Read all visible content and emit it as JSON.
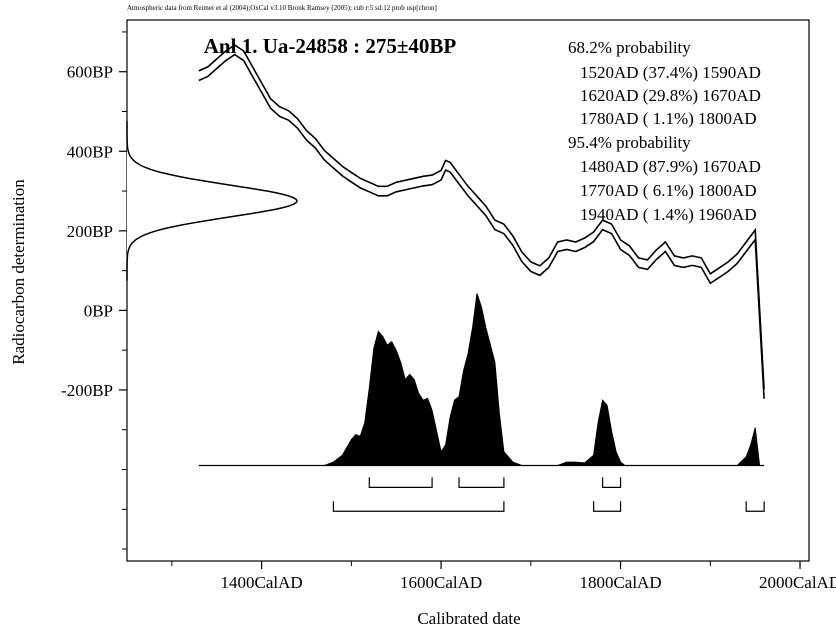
{
  "chart_data": {
    "type": "area",
    "header_note": "Atmospheric data from Reimer et al (2004);OxCal v3.10 Bronk Ramsey (2005); cub r:5 sd:12 prob usp[chron]",
    "title": "Anl 1. Ua-24858 : 275±40BP",
    "xlabel": "Calibrated date",
    "ylabel": "Radiocarbon determination",
    "xlim": [
      1250,
      2010
    ],
    "ylim": [
      -630,
      730
    ],
    "x_ticks": [
      {
        "value": 1400,
        "label": "1400CalAD"
      },
      {
        "value": 1600,
        "label": "1600CalAD"
      },
      {
        "value": 1800,
        "label": "1800CalAD"
      },
      {
        "value": 2000,
        "label": "2000CalAD"
      }
    ],
    "x_minor_ticks": [
      1300,
      1500,
      1700,
      1900
    ],
    "y_ticks": [
      {
        "value": 600,
        "label": "600BP"
      },
      {
        "value": 400,
        "label": "400BP"
      },
      {
        "value": 200,
        "label": "200BP"
      },
      {
        "value": 0,
        "label": "0BP"
      },
      {
        "value": -200,
        "label": "-200BP"
      }
    ],
    "y_minor_ticks": [
      700,
      500,
      300,
      100,
      -100,
      -300,
      -400,
      -500,
      -600
    ],
    "calibration_curve": {
      "x": [
        1330,
        1340,
        1350,
        1360,
        1370,
        1380,
        1390,
        1400,
        1410,
        1420,
        1430,
        1440,
        1450,
        1460,
        1470,
        1480,
        1490,
        1500,
        1510,
        1520,
        1530,
        1540,
        1550,
        1560,
        1570,
        1580,
        1590,
        1600,
        1605,
        1610,
        1620,
        1630,
        1640,
        1650,
        1660,
        1670,
        1680,
        1690,
        1700,
        1710,
        1720,
        1730,
        1740,
        1750,
        1760,
        1770,
        1780,
        1790,
        1800,
        1810,
        1820,
        1830,
        1840,
        1850,
        1860,
        1870,
        1880,
        1890,
        1900,
        1910,
        1920,
        1930,
        1940,
        1950,
        1960
      ],
      "y": [
        590,
        600,
        620,
        640,
        655,
        640,
        600,
        560,
        520,
        500,
        490,
        470,
        440,
        420,
        390,
        370,
        350,
        335,
        320,
        310,
        300,
        300,
        310,
        315,
        320,
        325,
        328,
        340,
        365,
        360,
        330,
        300,
        275,
        250,
        215,
        205,
        175,
        135,
        110,
        100,
        120,
        160,
        165,
        160,
        170,
        185,
        215,
        205,
        165,
        150,
        120,
        115,
        140,
        160,
        125,
        120,
        125,
        120,
        80,
        95,
        110,
        130,
        160,
        190,
        -210
      ]
    },
    "curve_band_width_bp": 24,
    "measured_date": {
      "mean_bp": 275,
      "sd_bp": 40
    },
    "probability_distribution": {
      "baseline_bp": -390,
      "x": [
        1470,
        1480,
        1490,
        1500,
        1505,
        1510,
        1515,
        1520,
        1525,
        1530,
        1535,
        1540,
        1545,
        1550,
        1555,
        1560,
        1565,
        1570,
        1575,
        1580,
        1585,
        1590,
        1595,
        1600,
        1605,
        1610,
        1615,
        1620,
        1625,
        1630,
        1635,
        1640,
        1645,
        1650,
        1655,
        1660,
        1665,
        1670,
        1680,
        1690,
        1700,
        1730,
        1740,
        1750,
        1760,
        1770,
        1775,
        1780,
        1785,
        1790,
        1795,
        1800,
        1805,
        1810,
        1930,
        1940,
        1945,
        1950,
        1955
      ],
      "y": [
        0,
        0.02,
        0.06,
        0.15,
        0.18,
        0.17,
        0.25,
        0.45,
        0.68,
        0.78,
        0.75,
        0.7,
        0.72,
        0.67,
        0.6,
        0.5,
        0.53,
        0.5,
        0.42,
        0.38,
        0.39,
        0.32,
        0.2,
        0.08,
        0.12,
        0.28,
        0.38,
        0.4,
        0.55,
        0.65,
        0.8,
        1.0,
        0.92,
        0.8,
        0.7,
        0.6,
        0.3,
        0.08,
        0.02,
        0,
        0,
        0,
        0.02,
        0.02,
        0.015,
        0.06,
        0.25,
        0.38,
        0.35,
        0.2,
        0.08,
        0.02,
        0,
        0,
        0,
        0.05,
        0.12,
        0.22,
        0
      ]
    },
    "ranges_68_2": [
      [
        1520,
        1590
      ],
      [
        1620,
        1670
      ],
      [
        1780,
        1800
      ]
    ],
    "ranges_95_4": [
      [
        1480,
        1670
      ],
      [
        1770,
        1800
      ],
      [
        1940,
        1960
      ]
    ],
    "results": {
      "p68_label": "68.2% probability",
      "p68": [
        "1520AD (37.4%) 1590AD",
        "1620AD (29.8%) 1670AD",
        "1780AD ( 1.1%) 1800AD"
      ],
      "p95_label": "95.4% probability",
      "p95": [
        "1480AD (87.9%) 1670AD",
        "1770AD ( 6.1%) 1800AD",
        "1940AD ( 1.4%) 1960AD"
      ]
    }
  }
}
